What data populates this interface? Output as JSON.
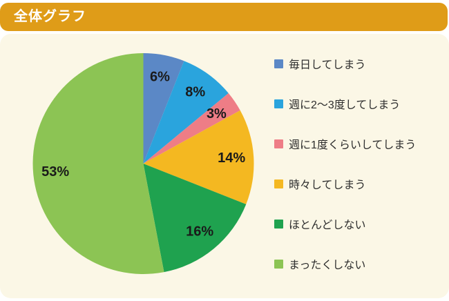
{
  "header": {
    "title": "全体グラフ",
    "bg_color": "#df9c18",
    "text_color": "#ffffff"
  },
  "panel": {
    "bg_color": "#fbf7e6"
  },
  "chart_data": {
    "type": "pie",
    "title": "全体グラフ",
    "start_angle_deg": 0,
    "direction": "clockwise",
    "legend_position": "right",
    "labels": [
      "毎日してしまう",
      "週に2〜3度してしまう",
      "週に1度くらいしてしまう",
      "時々してしまう",
      "ほとんどしない",
      "まったくしない"
    ],
    "values": [
      6,
      8,
      3,
      14,
      16,
      53
    ],
    "value_labels": [
      "6%",
      "8%",
      "3%",
      "14%",
      "16%",
      "53%"
    ],
    "colors": [
      "#5b88c6",
      "#2aa4dd",
      "#ee7d86",
      "#f4b821",
      "#1fa24f",
      "#8cc454"
    ]
  }
}
